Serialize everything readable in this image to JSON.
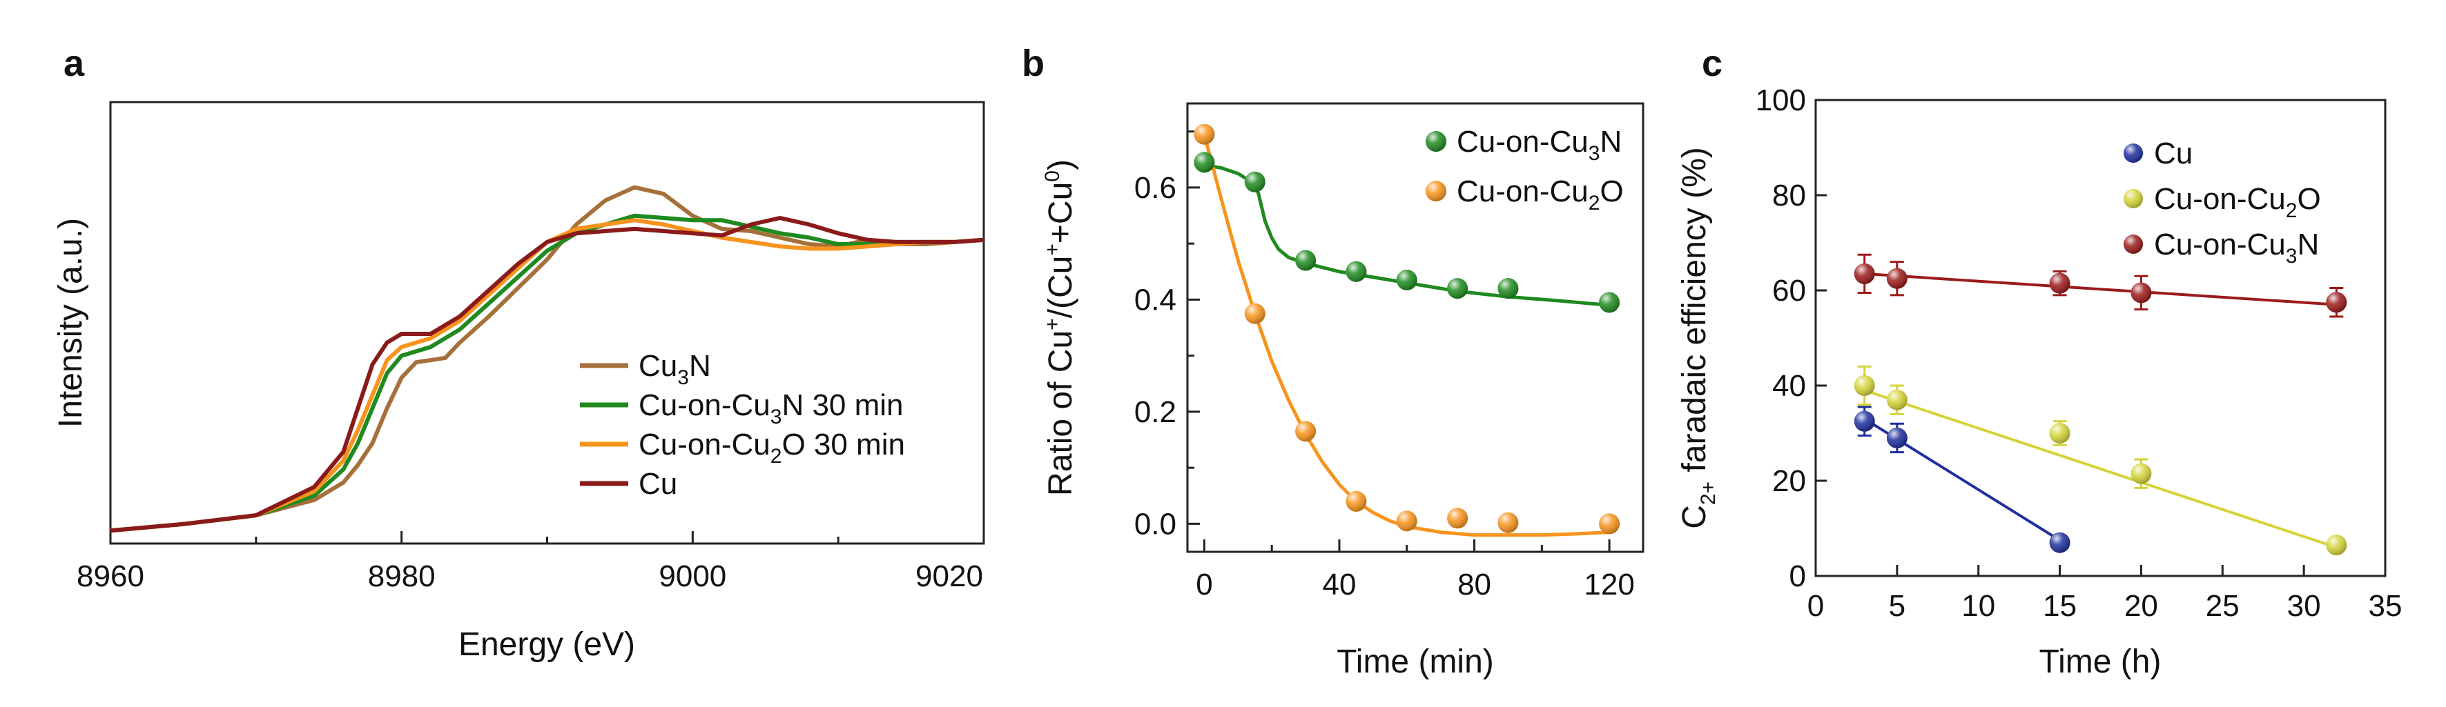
{
  "figure_labels": [
    "a",
    "b",
    "c"
  ],
  "chart_data": [
    {
      "panel": "a",
      "type": "line",
      "title": "",
      "xlabel": "Energy (eV)",
      "ylabel": "Intensity (a.u.)",
      "xlim": [
        8960,
        9020
      ],
      "xticks": [
        "8960",
        "8980",
        "9000",
        "9020"
      ],
      "legend_placement": "lower-right",
      "series": [
        {
          "name": "Cu3N",
          "label_parts": [
            "Cu",
            "3",
            "N"
          ],
          "color": "#a5703a",
          "x": [
            8960,
            8965,
            8970,
            8974,
            8976,
            8977,
            8978,
            8979,
            8980,
            8981,
            8982,
            8983,
            8984,
            8986,
            8988,
            8990,
            8992,
            8994,
            8996,
            8998,
            9000,
            9002,
            9004,
            9006,
            9008,
            9010,
            9012,
            9014,
            9016,
            9018,
            9020
          ],
          "y": [
            0.02,
            0.035,
            0.055,
            0.09,
            0.13,
            0.17,
            0.22,
            0.3,
            0.37,
            0.405,
            0.41,
            0.415,
            0.45,
            0.51,
            0.575,
            0.64,
            0.72,
            0.775,
            0.805,
            0.79,
            0.74,
            0.71,
            0.705,
            0.69,
            0.675,
            0.67,
            0.685,
            0.675,
            0.675,
            0.68,
            0.685
          ]
        },
        {
          "name": "Cu-on-Cu3N 30 min",
          "label_parts": [
            "Cu-on-Cu",
            "3",
            "N 30 min"
          ],
          "color": "#1f8a1f",
          "x": [
            8960,
            8965,
            8970,
            8974,
            8976,
            8977,
            8978,
            8979,
            8980,
            8981,
            8982,
            8984,
            8986,
            8988,
            8990,
            8992,
            8994,
            8996,
            8998,
            9000,
            9002,
            9004,
            9006,
            9008,
            9010,
            9012,
            9014,
            9016,
            9018,
            9020
          ],
          "y": [
            0.02,
            0.035,
            0.055,
            0.1,
            0.16,
            0.22,
            0.3,
            0.38,
            0.42,
            0.43,
            0.44,
            0.48,
            0.54,
            0.6,
            0.66,
            0.7,
            0.72,
            0.74,
            0.735,
            0.73,
            0.73,
            0.715,
            0.7,
            0.69,
            0.675,
            0.675,
            0.68,
            0.68,
            0.68,
            0.685
          ]
        },
        {
          "name": "Cu-on-Cu2O 30 min",
          "label_parts": [
            "Cu-on-Cu",
            "2",
            "O 30 min"
          ],
          "color": "#f7941d",
          "x": [
            8960,
            8965,
            8970,
            8974,
            8976,
            8977,
            8978,
            8979,
            8980,
            8981,
            8982,
            8984,
            8986,
            8988,
            8990,
            8992,
            8994,
            8996,
            8998,
            9000,
            9002,
            9004,
            9006,
            9008,
            9010,
            9012,
            9014,
            9016,
            9018,
            9020
          ],
          "y": [
            0.02,
            0.035,
            0.055,
            0.11,
            0.18,
            0.25,
            0.33,
            0.41,
            0.44,
            0.45,
            0.46,
            0.5,
            0.56,
            0.62,
            0.68,
            0.71,
            0.72,
            0.73,
            0.72,
            0.705,
            0.69,
            0.68,
            0.67,
            0.665,
            0.665,
            0.67,
            0.675,
            0.68,
            0.68,
            0.685
          ]
        },
        {
          "name": "Cu",
          "label_parts": [
            "Cu",
            "",
            ""
          ],
          "color": "#8b1a1a",
          "x": [
            8960,
            8965,
            8970,
            8974,
            8976,
            8977,
            8978,
            8979,
            8980,
            8981,
            8982,
            8984,
            8986,
            8988,
            8990,
            8992,
            8994,
            8996,
            8998,
            9000,
            9002,
            9004,
            9006,
            9008,
            9010,
            9012,
            9014,
            9016,
            9018,
            9020
          ],
          "y": [
            0.02,
            0.035,
            0.055,
            0.12,
            0.2,
            0.3,
            0.4,
            0.45,
            0.47,
            0.47,
            0.47,
            0.51,
            0.57,
            0.63,
            0.68,
            0.7,
            0.705,
            0.71,
            0.705,
            0.7,
            0.695,
            0.72,
            0.735,
            0.72,
            0.7,
            0.685,
            0.68,
            0.68,
            0.68,
            0.685
          ]
        }
      ]
    },
    {
      "panel": "b",
      "type": "scatter",
      "title": "",
      "xlabel": "Time (min)",
      "ylabel": "Ratio of Cu+/(Cu++Cu0)",
      "xlim": [
        -5,
        130
      ],
      "ylim": [
        -0.05,
        0.75
      ],
      "xticks": [
        "0",
        "40",
        "80",
        "120"
      ],
      "yticks": [
        "0.0",
        "0.2",
        "0.4",
        "0.6"
      ],
      "legend_placement": "top-right",
      "series": [
        {
          "name": "Cu-on-Cu3N",
          "label_parts": [
            "Cu-on-Cu",
            "3",
            "N"
          ],
          "color": "#1f8a1f",
          "x": [
            0,
            15,
            30,
            45,
            60,
            75,
            90,
            120
          ],
          "y": [
            0.645,
            0.61,
            0.47,
            0.45,
            0.435,
            0.42,
            0.42,
            0.395
          ],
          "fit_x": [
            0,
            5,
            10,
            14,
            16,
            18,
            20,
            22,
            25,
            30,
            40,
            50,
            60,
            75,
            90,
            105,
            120
          ],
          "fit_y": [
            0.64,
            0.635,
            0.625,
            0.61,
            0.59,
            0.54,
            0.51,
            0.49,
            0.475,
            0.465,
            0.45,
            0.44,
            0.43,
            0.415,
            0.405,
            0.398,
            0.39
          ]
        },
        {
          "name": "Cu-on-Cu2O",
          "label_parts": [
            "Cu-on-Cu",
            "2",
            "O"
          ],
          "color": "#f7941d",
          "x": [
            0,
            15,
            30,
            45,
            60,
            75,
            90,
            120
          ],
          "y": [
            0.695,
            0.375,
            0.165,
            0.04,
            0.005,
            0.01,
            0.002,
            0.0
          ],
          "fit_x": [
            0,
            5,
            10,
            15,
            20,
            25,
            30,
            35,
            40,
            45,
            50,
            55,
            60,
            70,
            80,
            90,
            100,
            110,
            120
          ],
          "fit_y": [
            0.695,
            0.58,
            0.47,
            0.375,
            0.29,
            0.22,
            0.16,
            0.11,
            0.07,
            0.04,
            0.02,
            0.005,
            -0.005,
            -0.015,
            -0.02,
            -0.02,
            -0.02,
            -0.018,
            -0.015
          ]
        }
      ]
    },
    {
      "panel": "c",
      "type": "scatter",
      "title": "",
      "xlabel": "Time (h)",
      "ylabel": "C2+ faradaic efficiency (%)",
      "xlim": [
        0,
        35
      ],
      "ylim": [
        0,
        100
      ],
      "xticks": [
        "0",
        "5",
        "10",
        "15",
        "20",
        "25",
        "30",
        "35"
      ],
      "yticks": [
        "0",
        "20",
        "40",
        "60",
        "80",
        "100"
      ],
      "legend_placement": "top-right",
      "series": [
        {
          "name": "Cu",
          "label_parts": [
            "Cu",
            "",
            ""
          ],
          "color": "#1f2f9e",
          "x": [
            3,
            5,
            15
          ],
          "y": [
            32.5,
            29,
            7
          ],
          "err": [
            3,
            3,
            0
          ],
          "fit_x": [
            3,
            15
          ],
          "fit_y": [
            33,
            7.5
          ]
        },
        {
          "name": "Cu-on-Cu2O",
          "label_parts": [
            "Cu-on-Cu",
            "2",
            "O"
          ],
          "color": "#d4d43a",
          "x": [
            3,
            5,
            15,
            20,
            32
          ],
          "y": [
            40,
            37,
            30,
            21.5,
            6.5
          ],
          "err": [
            4,
            3,
            2.5,
            3,
            0
          ],
          "fit_x": [
            3,
            32
          ],
          "fit_y": [
            39,
            6
          ]
        },
        {
          "name": "Cu-on-Cu3N",
          "label_parts": [
            "Cu-on-Cu",
            "3",
            "N"
          ],
          "color": "#9b1b1b",
          "x": [
            3,
            5,
            15,
            20,
            32
          ],
          "y": [
            63.5,
            62.5,
            61.5,
            59.5,
            57.5
          ],
          "err": [
            4,
            3.5,
            2.5,
            3.5,
            3
          ],
          "fit_x": [
            3,
            32
          ],
          "fit_y": [
            63.5,
            57
          ]
        }
      ]
    }
  ]
}
